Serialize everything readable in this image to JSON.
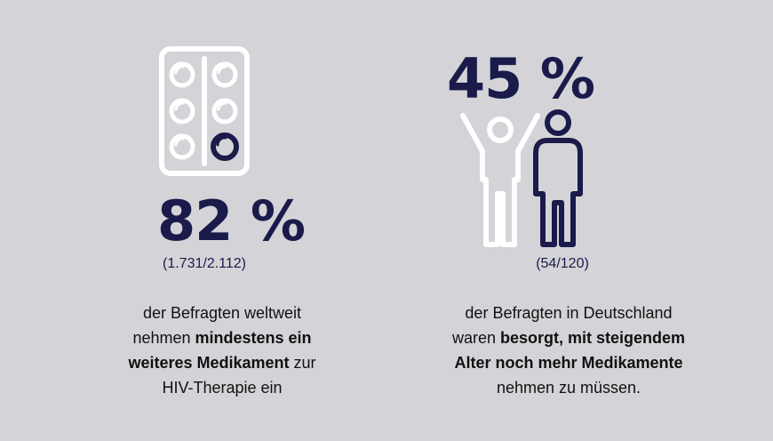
{
  "left": {
    "icon": "pill-blister-pack-icon",
    "percent": "82 %",
    "ratio": "(1.731/2.112)",
    "desc": {
      "line1": "der Befragten weltweit",
      "line2_plain": "nehmen ",
      "line2_bold": "mindestens ein",
      "line3_bold": "weiteres Medikament",
      "line3_plain": " zur",
      "line4": "HIV-Therapie ein"
    }
  },
  "right": {
    "icon": "worried-people-icon",
    "percent": "45 %",
    "ratio": "(54/120)",
    "desc": {
      "line1": "der Befragten in Deutschland",
      "line2_plain": "waren ",
      "line2_bold": "besorgt, mit steigendem",
      "line3_bold": "Alter noch mehr Medikamente",
      "line4": "nehmen zu müssen."
    }
  },
  "colors": {
    "background": "#d4d4d8",
    "navy": "#1a1b4b",
    "white": "#ffffff",
    "text": "#111111"
  }
}
